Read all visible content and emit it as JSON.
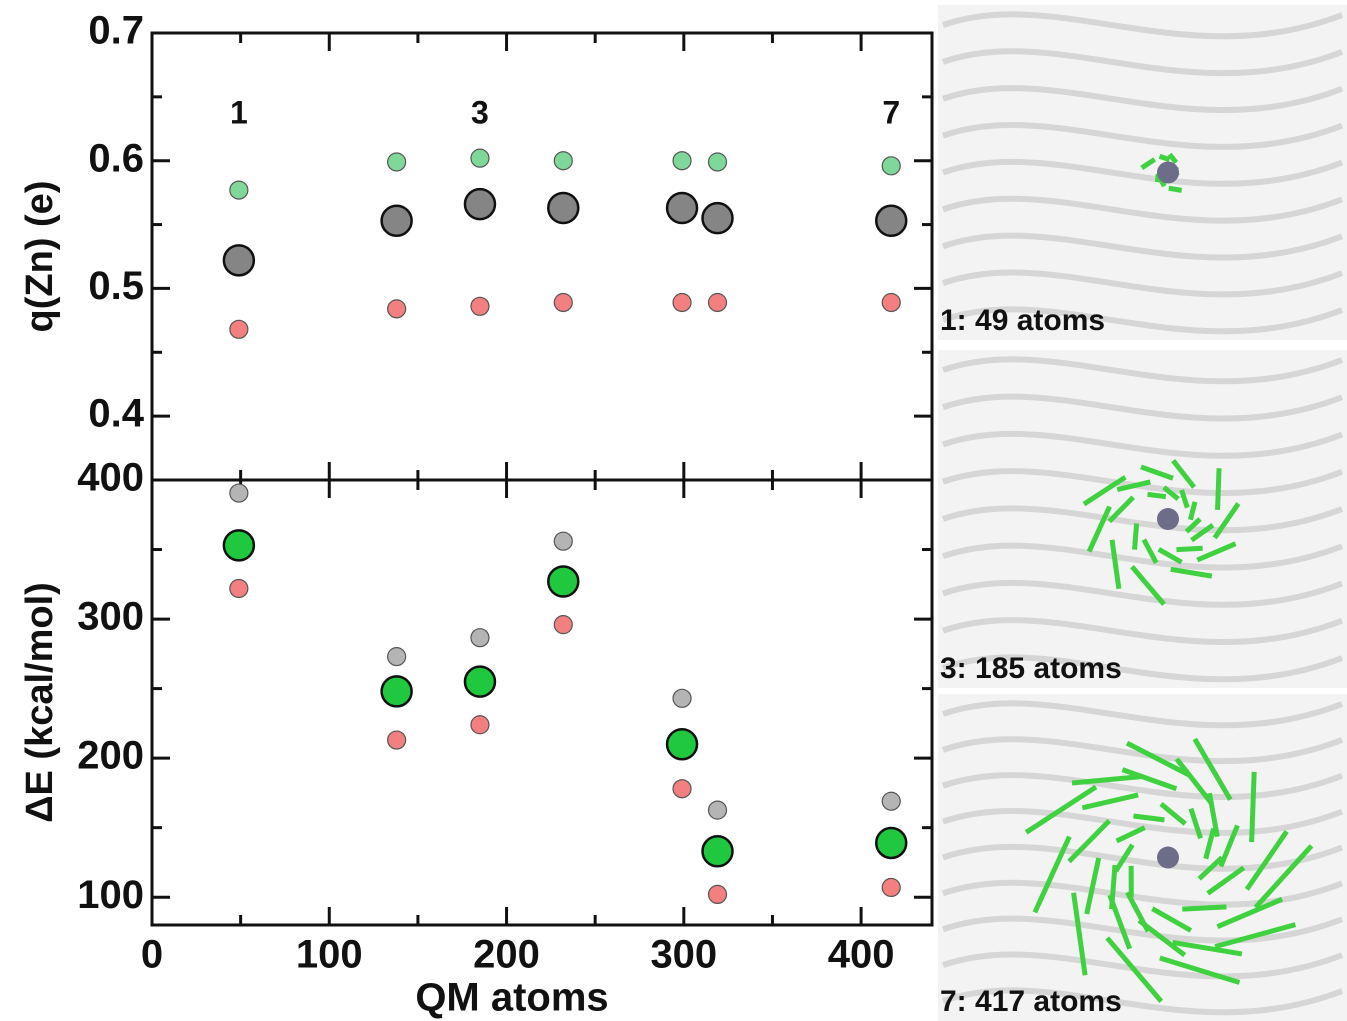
{
  "chart_data": [
    {
      "type": "scatter",
      "ylabel": "q(Zn) (e)",
      "x": [
        49,
        138,
        185,
        232,
        299,
        319,
        417
      ],
      "xlim": [
        0,
        440
      ],
      "ylim": [
        0.35,
        0.7
      ],
      "xticks": [
        0,
        100,
        200,
        300,
        400
      ],
      "xminorticks": [
        50,
        150,
        250,
        350
      ],
      "xticklabels": false,
      "yticks": [
        0.4,
        0.5,
        0.6,
        0.7
      ],
      "yminorticks": [
        0.45,
        0.55,
        0.65
      ],
      "annotations": [
        {
          "text": "1",
          "x": 49
        },
        {
          "text": "3",
          "x": 185
        },
        {
          "text": "7",
          "x": 417
        }
      ],
      "series": [
        {
          "color": "#7fd89a",
          "size": "small",
          "values": [
            0.577,
            0.599,
            0.602,
            0.6,
            0.6,
            0.599,
            0.596
          ]
        },
        {
          "color": "#858585",
          "size": "large",
          "values": [
            0.522,
            0.553,
            0.566,
            0.563,
            0.563,
            0.555,
            0.553
          ]
        },
        {
          "color": "#f28080",
          "size": "small",
          "values": [
            0.468,
            0.484,
            0.486,
            0.489,
            0.489,
            0.489,
            0.489
          ]
        }
      ]
    },
    {
      "type": "scatter",
      "ylabel": "ΔE (kcal/mol)",
      "xlabel": "QM atoms",
      "x": [
        49,
        138,
        185,
        232,
        299,
        319,
        417
      ],
      "xlim": [
        0,
        440
      ],
      "ylim": [
        80,
        400
      ],
      "xticks": [
        0,
        100,
        200,
        300,
        400
      ],
      "xminorticks": [
        50,
        150,
        250,
        350
      ],
      "xticklabels": true,
      "yticks": [
        100,
        200,
        300,
        400
      ],
      "yminorticks": [
        150,
        250,
        350
      ],
      "series": [
        {
          "color": "#b4b4b4",
          "size": "small",
          "values": [
            390.6,
            273,
            286.6,
            356,
            243,
            162.6,
            169
          ]
        },
        {
          "color": "#1fc83f",
          "size": "large",
          "values": [
            353,
            248,
            255,
            327,
            210,
            133,
            139
          ]
        },
        {
          "color": "#f28080",
          "size": "small",
          "values": [
            322,
            213,
            224,
            296,
            178,
            102,
            107
          ]
        }
      ]
    }
  ],
  "images": [
    {
      "caption": "1: 49 atoms"
    },
    {
      "caption": "3: 185 atoms"
    },
    {
      "caption": "7: 417 atoms"
    }
  ]
}
